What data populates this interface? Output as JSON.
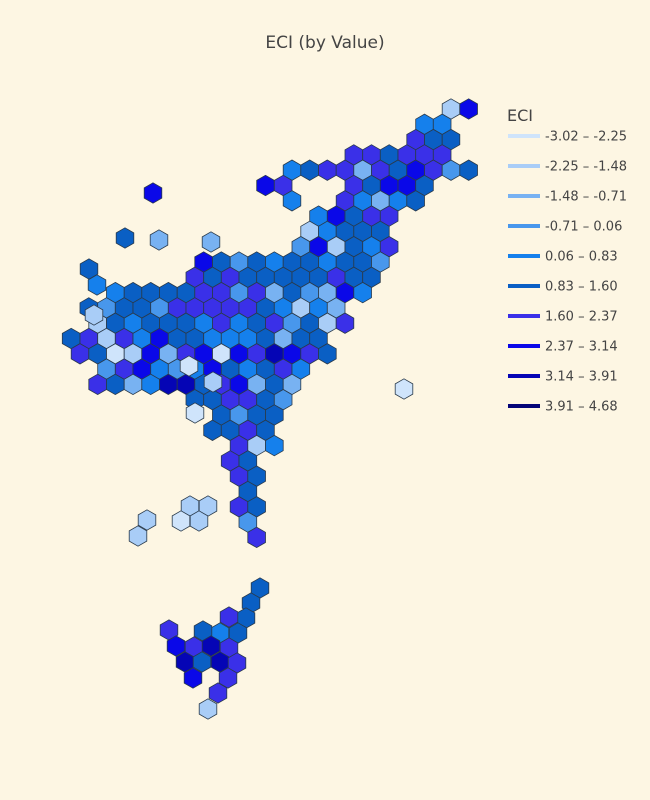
{
  "chart_data": {
    "type": "heatmap",
    "subtype": "hexbin-map",
    "title": "ECI (by Value)",
    "legend": {
      "title": "ECI",
      "placement": "right",
      "entries": [
        {
          "label": "-3.02 – -2.25",
          "color": "#cfe4fb"
        },
        {
          "label": "-2.25 – -1.48",
          "color": "#a9cdf7"
        },
        {
          "label": "-1.48 – -0.71",
          "color": "#78b2f2"
        },
        {
          "label": "-0.71 – 0.06",
          "color": "#4897ec"
        },
        {
          "label": "0.06 – 0.83",
          "color": "#1580ec"
        },
        {
          "label": "0.83 – 1.60",
          "color": "#0a5fc4"
        },
        {
          "label": "1.60 – 2.37",
          "color": "#3a30e8"
        },
        {
          "label": "2.37 – 3.14",
          "color": "#0a08e8"
        },
        {
          "label": "3.14 – 3.91",
          "color": "#0505b5"
        },
        {
          "label": "3.91 – 4.68",
          "color": "#040478"
        }
      ]
    }
  }
}
